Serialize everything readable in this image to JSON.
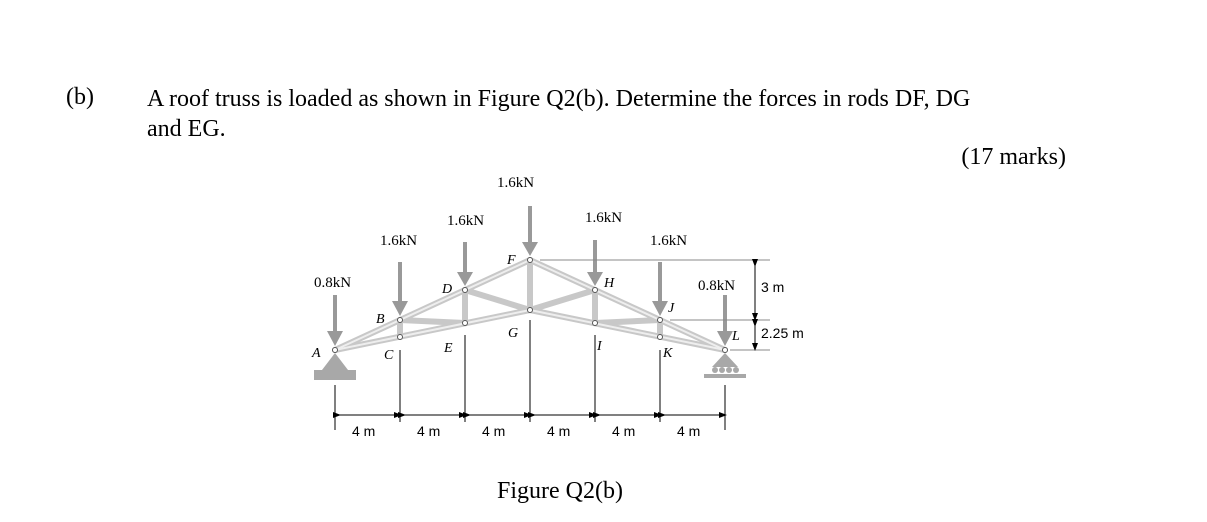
{
  "question": {
    "label": "(b)",
    "text_line1": "A roof truss is loaded as shown in Figure Q2(b). Determine the forces in rods DF, DG",
    "text_line2": "and EG.",
    "marks": "(17 marks)"
  },
  "figure": {
    "caption": "Figure Q2(b)",
    "loads": {
      "A": "0.8kN",
      "B": "1.6kN",
      "D": "1.6kN",
      "F": "1.6kN",
      "H": "1.6kN",
      "J": "1.6kN",
      "L": "0.8kN"
    },
    "nodes": [
      "A",
      "B",
      "C",
      "D",
      "E",
      "F",
      "G",
      "H",
      "I",
      "J",
      "K",
      "L"
    ],
    "spans": [
      "4 m",
      "4 m",
      "4 m",
      "4 m",
      "4 m",
      "4 m"
    ],
    "heights": [
      "3 m",
      "2.25 m"
    ]
  },
  "colors": {
    "member": "#c8c8c8",
    "arrow": "#999999",
    "support": "#a8a8a8"
  }
}
